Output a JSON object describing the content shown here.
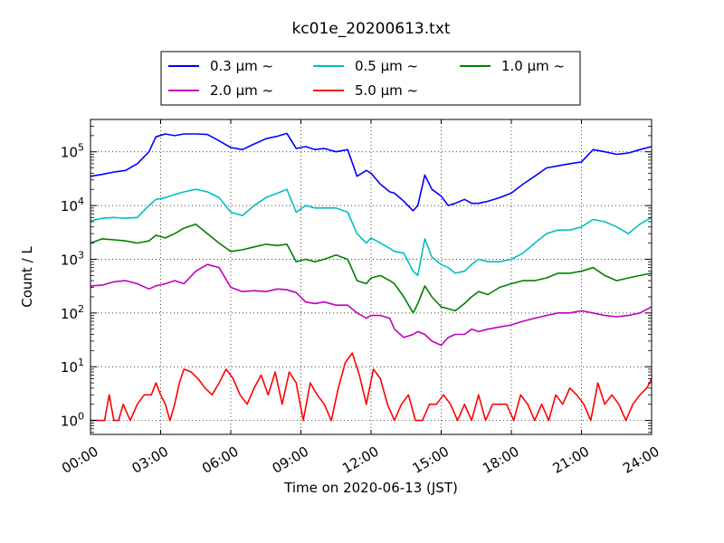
{
  "chart_data": {
    "type": "line",
    "title": "kc01e_20200613.txt",
    "xlabel": "Time on 2020-06-13 (JST)",
    "ylabel": "Count / L",
    "yscale": "log",
    "ylim": [
      0.55,
      400000
    ],
    "xlim": [
      0,
      24
    ],
    "grid": true,
    "legend_position": "top, above plot (3 columns)",
    "x_ticks": [
      0,
      3,
      6,
      9,
      12,
      15,
      18,
      21,
      24
    ],
    "x_tick_labels": [
      "00:00",
      "03:00",
      "06:00",
      "09:00",
      "12:00",
      "15:00",
      "18:00",
      "21:00",
      "24:00"
    ],
    "y_ticks": [
      1,
      10,
      100,
      1000,
      10000,
      100000
    ],
    "y_tick_labels": [
      {
        "base": "10",
        "exp": "0"
      },
      {
        "base": "10",
        "exp": "1"
      },
      {
        "base": "10",
        "exp": "2"
      },
      {
        "base": "10",
        "exp": "3"
      },
      {
        "base": "10",
        "exp": "4"
      },
      {
        "base": "10",
        "exp": "5"
      }
    ],
    "series": [
      {
        "name": "0.3 µm ~",
        "color": "#0000ff",
        "x": [
          0,
          0.5,
          1,
          1.5,
          2,
          2.5,
          2.8,
          3.2,
          3.6,
          4,
          4.5,
          5,
          5.5,
          6,
          6.5,
          7,
          7.5,
          8,
          8.4,
          8.8,
          9.2,
          9.6,
          10,
          10.5,
          11,
          11.4,
          11.8,
          12,
          12.4,
          12.8,
          13,
          13.4,
          13.8,
          14,
          14.3,
          14.6,
          15,
          15.3,
          15.6,
          16,
          16.3,
          16.6,
          17,
          17.5,
          18,
          18.5,
          19,
          19.5,
          20,
          20.5,
          21,
          21.5,
          22,
          22.5,
          23,
          23.5,
          24
        ],
        "y": [
          35000,
          38000,
          42000,
          45000,
          60000,
          100000,
          190000,
          215000,
          200000,
          215000,
          215000,
          210000,
          160000,
          120000,
          110000,
          140000,
          175000,
          195000,
          220000,
          115000,
          125000,
          110000,
          115000,
          100000,
          110000,
          35000,
          45000,
          40000,
          25000,
          18000,
          17000,
          12000,
          8000,
          10000,
          37000,
          20000,
          15000,
          10000,
          11000,
          13000,
          11000,
          11000,
          12000,
          14000,
          17000,
          25000,
          35000,
          50000,
          55000,
          60000,
          65000,
          110000,
          100000,
          90000,
          95000,
          110000,
          125000
        ]
      },
      {
        "name": "0.5 µm ~",
        "color": "#00bfbf",
        "x": [
          0,
          0.5,
          1,
          1.5,
          2,
          2.5,
          2.8,
          3.2,
          3.6,
          4,
          4.5,
          5,
          5.5,
          6,
          6.5,
          7,
          7.5,
          8,
          8.4,
          8.8,
          9.2,
          9.6,
          10,
          10.5,
          11,
          11.4,
          11.8,
          12,
          12.4,
          12.8,
          13,
          13.4,
          13.8,
          14,
          14.3,
          14.6,
          15,
          15.3,
          15.6,
          16,
          16.3,
          16.6,
          17,
          17.5,
          18,
          18.5,
          19,
          19.5,
          20,
          20.5,
          21,
          21.5,
          22,
          22.5,
          23,
          23.5,
          24
        ],
        "y": [
          5200,
          5800,
          6000,
          5800,
          6000,
          10000,
          13000,
          14000,
          16000,
          18000,
          20000,
          18000,
          14000,
          7500,
          6500,
          10000,
          14000,
          17000,
          20000,
          7500,
          10000,
          9000,
          9000,
          9000,
          7500,
          3000,
          2000,
          2500,
          2000,
          1600,
          1400,
          1300,
          600,
          500,
          2400,
          1100,
          800,
          700,
          550,
          600,
          800,
          1000,
          900,
          900,
          1000,
          1300,
          2000,
          3000,
          3500,
          3500,
          4000,
          5500,
          5000,
          4000,
          3000,
          4500,
          6000
        ]
      },
      {
        "name": "1.0 µm ~",
        "color": "#008000",
        "x": [
          0,
          0.5,
          1,
          1.5,
          2,
          2.5,
          2.8,
          3.2,
          3.6,
          4,
          4.5,
          5,
          5.5,
          6,
          6.5,
          7,
          7.5,
          8,
          8.4,
          8.8,
          9.2,
          9.6,
          10,
          10.5,
          11,
          11.4,
          11.8,
          12,
          12.4,
          12.8,
          13,
          13.4,
          13.8,
          14,
          14.3,
          14.6,
          15,
          15.3,
          15.6,
          16,
          16.3,
          16.6,
          17,
          17.5,
          18,
          18.5,
          19,
          19.5,
          20,
          20.5,
          21,
          21.5,
          22,
          22.5,
          23,
          23.5,
          24
        ],
        "y": [
          2000,
          2400,
          2300,
          2200,
          2000,
          2200,
          2800,
          2500,
          3000,
          3800,
          4500,
          3000,
          2000,
          1400,
          1500,
          1700,
          1900,
          1800,
          1900,
          900,
          1000,
          900,
          1000,
          1200,
          1000,
          400,
          350,
          450,
          500,
          400,
          350,
          200,
          100,
          150,
          320,
          200,
          130,
          120,
          110,
          150,
          200,
          250,
          220,
          300,
          350,
          400,
          400,
          450,
          550,
          550,
          600,
          700,
          500,
          400,
          450,
          500,
          550
        ]
      },
      {
        "name": "2.0 µm ~",
        "color": "#bf00bf",
        "x": [
          0,
          0.5,
          1,
          1.5,
          2,
          2.5,
          2.8,
          3.2,
          3.6,
          4,
          4.5,
          5,
          5.5,
          6,
          6.5,
          7,
          7.5,
          8,
          8.4,
          8.8,
          9.2,
          9.6,
          10,
          10.5,
          11,
          11.4,
          11.8,
          12,
          12.4,
          12.8,
          13,
          13.4,
          13.8,
          14,
          14.3,
          14.6,
          15,
          15.3,
          15.6,
          16,
          16.3,
          16.6,
          17,
          17.5,
          18,
          18.5,
          19,
          19.5,
          20,
          20.5,
          21,
          21.5,
          22,
          22.5,
          23,
          23.5,
          24
        ],
        "y": [
          320,
          330,
          380,
          400,
          350,
          280,
          320,
          350,
          400,
          350,
          600,
          800,
          700,
          300,
          250,
          260,
          250,
          280,
          270,
          240,
          160,
          150,
          160,
          140,
          140,
          100,
          80,
          90,
          90,
          80,
          50,
          35,
          40,
          45,
          40,
          30,
          25,
          35,
          40,
          40,
          50,
          45,
          50,
          55,
          60,
          70,
          80,
          90,
          100,
          100,
          110,
          100,
          90,
          85,
          90,
          100,
          130
        ]
      },
      {
        "name": "5.0 µm ~",
        "color": "#ff0000",
        "x": [
          0,
          0.3,
          0.6,
          0.8,
          1.0,
          1.2,
          1.4,
          1.7,
          2.0,
          2.3,
          2.6,
          2.8,
          3.0,
          3.2,
          3.4,
          3.6,
          3.8,
          4.0,
          4.3,
          4.6,
          4.9,
          5.2,
          5.5,
          5.8,
          6.1,
          6.4,
          6.7,
          7.0,
          7.3,
          7.6,
          7.9,
          8.2,
          8.5,
          8.8,
          9.1,
          9.4,
          9.7,
          10.0,
          10.3,
          10.6,
          10.9,
          11.2,
          11.5,
          11.8,
          12.1,
          12.4,
          12.7,
          13.0,
          13.3,
          13.6,
          13.9,
          14.2,
          14.5,
          14.8,
          15.1,
          15.4,
          15.7,
          16.0,
          16.3,
          16.6,
          16.9,
          17.2,
          17.5,
          17.8,
          18.1,
          18.4,
          18.7,
          19.0,
          19.3,
          19.6,
          19.9,
          20.2,
          20.5,
          20.8,
          21.1,
          21.4,
          21.7,
          22.0,
          22.3,
          22.6,
          22.9,
          23.2,
          23.5,
          23.8,
          24.0
        ],
        "y": [
          1,
          1,
          1,
          3,
          1,
          1,
          2,
          1,
          2,
          3,
          3,
          5,
          3,
          2,
          1,
          2,
          5,
          9,
          8,
          6,
          4,
          3,
          5,
          9,
          6,
          3,
          2,
          4,
          7,
          3,
          8,
          2,
          8,
          5,
          1,
          5,
          3,
          2,
          1,
          4,
          12,
          18,
          7,
          2,
          9,
          6,
          2,
          1,
          2,
          3,
          1,
          1,
          2,
          2,
          3,
          2,
          1,
          2,
          1,
          3,
          1,
          2,
          2,
          2,
          1,
          3,
          2,
          1,
          2,
          1,
          3,
          2,
          4,
          3,
          2,
          1,
          5,
          2,
          3,
          2,
          1,
          2,
          3,
          4,
          6
        ]
      }
    ]
  }
}
